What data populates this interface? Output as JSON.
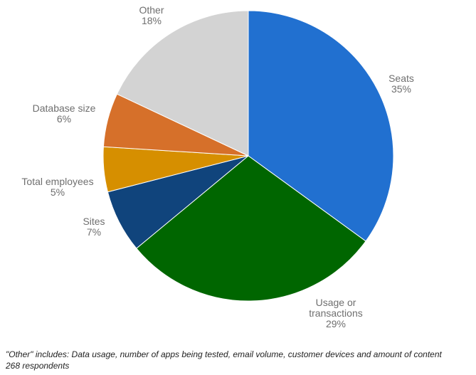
{
  "chart_data": {
    "type": "pie",
    "slices": [
      {
        "label": [
          "Seats"
        ],
        "pct_label": "35%",
        "value": 35,
        "color": "#2170d0"
      },
      {
        "label": [
          "Usage or",
          "transactions"
        ],
        "pct_label": "29%",
        "value": 29,
        "color": "#006600"
      },
      {
        "label": [
          "Sites"
        ],
        "pct_label": "7%",
        "value": 7,
        "color": "#10447c"
      },
      {
        "label": [
          "Total employees"
        ],
        "pct_label": "5%",
        "value": 5,
        "color": "#d68f00"
      },
      {
        "label": [
          "Database size"
        ],
        "pct_label": "6%",
        "value": 6,
        "color": "#d6702a"
      },
      {
        "label": [
          "Other"
        ],
        "pct_label": "18%",
        "value": 18,
        "color": "#d3d3d3"
      }
    ]
  },
  "footnote": {
    "line1": "\"Other\" includes: Data usage, number of apps being tested, email volume, customer devices and amount of content",
    "line2": "268 respondents"
  }
}
